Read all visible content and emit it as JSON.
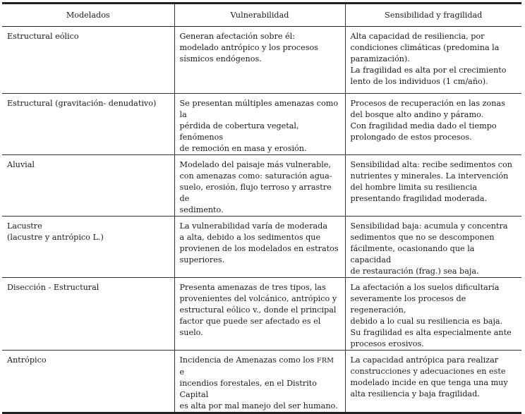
{
  "headers": [
    "Modelados",
    "Vulnerabilidad",
    "Sensibilidad y fragilidad"
  ],
  "rows": [
    {
      "modelado": "Estructural eólico",
      "vulnerabilidad": "Generan afectación sobre él:\nmodelado antrópico y los procesos\nsísmicos endógenos.",
      "sensibilidad": "Alta capacidad de resiliencia, por\ncondiciones climáticas (predomina la\nparamización).\nLa fragilidad es alta por el crecimiento\nlento de los individuos (1 cm/año)."
    },
    {
      "modelado": "Estructural (gravitación- denudativo)",
      "vulnerabilidad": "Se presentan múltiples amenazas como la\npérdida de cobertura vegetal, fenómenos\nde remoción en masa y erosión.",
      "sensibilidad": "Procesos de recuperación en las zonas\ndel bosque alto andino y páramo.\nCon fragilidad media dado el tiempo\nprolongado de estos procesos."
    },
    {
      "modelado": "Aluvial",
      "vulnerabilidad": "Modelado del paisaje más vulnerable,\ncon amenazas como: saturación agua-\nsuelo, erosión, flujo terroso y arrastre de\nsedimento.",
      "sensibilidad": "Sensibilidad alta: recibe sedimentos con\nnutrientes y minerales. La intervención\ndel hombre limita su resiliencia\npresentando fragilidad moderada."
    },
    {
      "modelado": "Lacustre\n(lacustre y antrópico L.)",
      "vulnerabilidad": "La vulnerabilidad varía de moderada\na alta, debido a los sedimentos que\nprovienen de los modelados en estratos\nsuperiores.",
      "sensibilidad": "Sensibilidad baja: acumula y concentra\nsedimentos que no se descomponen\nfácilmente, ocasionando que la capacidad\nde restauración (frag.) sea baja."
    },
    {
      "modelado": "Disección - Estructural",
      "vulnerabilidad": "Presenta amenazas de tres tipos, las\nprovenientes del volcánico, antrópico y\nestructural eólico v., donde el principal\nfactor que puede ser afectado es el suelo.",
      "sensibilidad": "La afectación a los suelos dificultaría\nseveramente los procesos de regeneración,\ndebido a lo cual su resiliencia es baja.\nSu fragilidad es alta especialmente ante\nprocesos erosivos."
    },
    {
      "modelado": "Antrópico",
      "vulnerabilidad_pre": "Incidencia de Amenazas como los ",
      "vulnerabilidad_abbr": "FRM",
      "vulnerabilidad_post": " e\nincendios forestales, en el Distrito Capital\nes alta por mal manejo del ser humano.",
      "sensibilidad": "La capacidad antrópica para realizar\nconstrucciones y adecuaciones en este\nmodelado incide en que tenga una muy\nalta resiliencia y baja fragilidad."
    }
  ]
}
